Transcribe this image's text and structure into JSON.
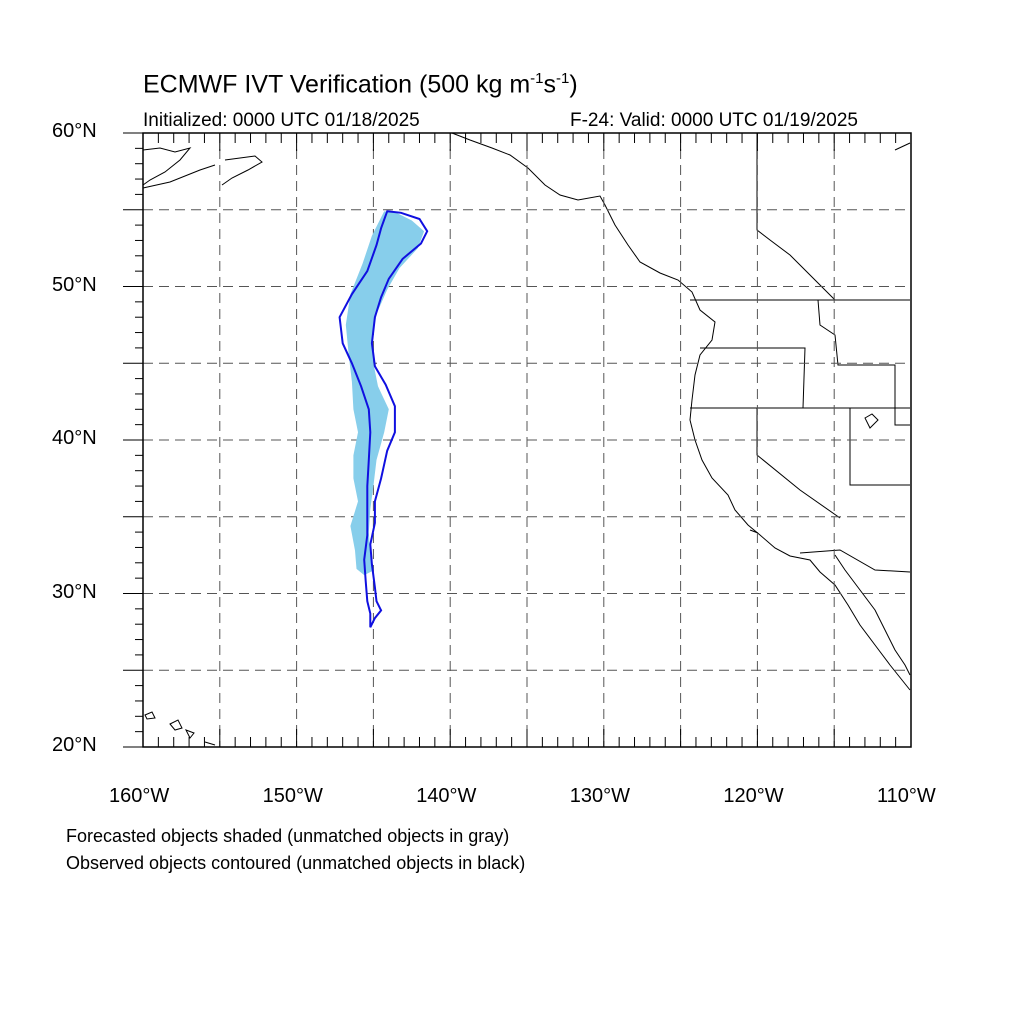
{
  "title": {
    "text": "ECMWF IVT Verification (500 kg m",
    "sup1": "-1",
    "mid": "s",
    "sup2": "-1",
    "end": ")"
  },
  "init_label": "Initialized: 0000 UTC 01/18/2025",
  "valid_label": "F-24: Valid: 0000 UTC 01/19/2025",
  "lat_labels": [
    "60°N",
    "50°N",
    "40°N",
    "30°N",
    "20°N"
  ],
  "lon_labels": [
    "160°W",
    "150°W",
    "140°W",
    "130°W",
    "120°W",
    "110°W"
  ],
  "notes": [
    "Forecasted objects shaded (unmatched objects in gray)",
    "Observed objects contoured (unmatched objects in black)"
  ],
  "map": {
    "lon_range": [
      -160,
      -110
    ],
    "lat_range": [
      20,
      60
    ],
    "grid_lons": [
      -155,
      -150,
      -145,
      -140,
      -135,
      -130,
      -125,
      -120,
      -115
    ],
    "grid_lats": [
      25,
      30,
      35,
      40,
      45,
      50,
      55
    ],
    "colors": {
      "forecast_fill": "#87ceeb",
      "observed_contour": "#1010e0",
      "coastline": "#000000"
    }
  },
  "forecast_object": [
    [
      -144.3,
      54.9
    ],
    [
      -143.5,
      54.8
    ],
    [
      -142.5,
      54.3
    ],
    [
      -141.7,
      53.6
    ],
    [
      -142.1,
      52.5
    ],
    [
      -143.3,
      51.2
    ],
    [
      -144.1,
      49.8
    ],
    [
      -144.8,
      48.2
    ],
    [
      -145.1,
      46.5
    ],
    [
      -145.0,
      45.0
    ],
    [
      -144.7,
      43.5
    ],
    [
      -144.0,
      42.0
    ],
    [
      -144.3,
      40.5
    ],
    [
      -144.8,
      38.7
    ],
    [
      -145.0,
      37.0
    ],
    [
      -145.2,
      35.5
    ],
    [
      -145.3,
      34.0
    ],
    [
      -145.2,
      32.5
    ],
    [
      -145.0,
      31.5
    ],
    [
      -145.6,
      31.2
    ],
    [
      -146.1,
      31.6
    ],
    [
      -146.2,
      32.8
    ],
    [
      -146.5,
      34.4
    ],
    [
      -146.0,
      36.0
    ],
    [
      -146.3,
      37.5
    ],
    [
      -146.3,
      39.0
    ],
    [
      -146.0,
      40.5
    ],
    [
      -146.3,
      42.0
    ],
    [
      -146.4,
      43.8
    ],
    [
      -146.6,
      45.5
    ],
    [
      -146.8,
      47.5
    ],
    [
      -146.5,
      49.5
    ],
    [
      -145.7,
      51.5
    ],
    [
      -145.1,
      53.3
    ]
  ],
  "observed_object": [
    [
      -144.1,
      54.9
    ],
    [
      -143.2,
      54.8
    ],
    [
      -142.0,
      54.4
    ],
    [
      -141.5,
      53.6
    ],
    [
      -141.9,
      52.8
    ],
    [
      -143.1,
      51.8
    ],
    [
      -144.0,
      50.5
    ],
    [
      -144.5,
      49.3
    ],
    [
      -144.9,
      48.0
    ],
    [
      -145.1,
      46.3
    ],
    [
      -144.9,
      44.8
    ],
    [
      -144.2,
      43.6
    ],
    [
      -143.6,
      42.2
    ],
    [
      -143.6,
      40.5
    ],
    [
      -144.1,
      39.3
    ],
    [
      -144.5,
      37.5
    ],
    [
      -144.9,
      36.0
    ],
    [
      -144.9,
      34.6
    ],
    [
      -145.2,
      33.2
    ],
    [
      -145.1,
      31.9
    ],
    [
      -144.9,
      30.4
    ],
    [
      -144.8,
      29.5
    ],
    [
      -144.5,
      28.9
    ],
    [
      -144.9,
      28.4
    ],
    [
      -145.2,
      27.8
    ],
    [
      -145.2,
      28.7
    ],
    [
      -145.4,
      29.5
    ],
    [
      -145.5,
      30.8
    ],
    [
      -145.6,
      32.2
    ],
    [
      -145.4,
      33.8
    ],
    [
      -145.4,
      35.5
    ],
    [
      -145.4,
      37.0
    ],
    [
      -145.3,
      38.7
    ],
    [
      -145.2,
      40.5
    ],
    [
      -145.3,
      42.0
    ],
    [
      -145.8,
      43.5
    ],
    [
      -146.4,
      45.0
    ],
    [
      -147.0,
      46.3
    ],
    [
      -147.2,
      48.0
    ],
    [
      -146.4,
      49.5
    ],
    [
      -145.4,
      51.0
    ],
    [
      -144.8,
      52.7
    ],
    [
      -144.5,
      53.8
    ]
  ]
}
